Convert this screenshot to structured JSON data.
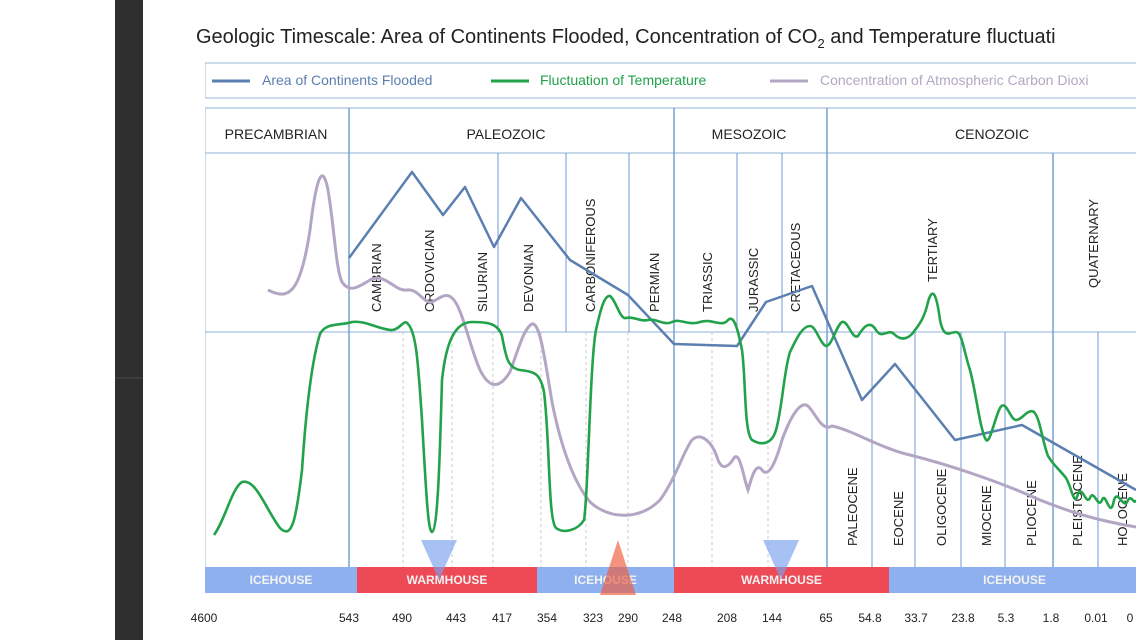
{
  "page": {
    "background": "#ffffff"
  },
  "chart_data": {
    "type": "line",
    "title": "Geologic Timescale: Area of Continents Flooded, Concentration of CO2 and Temperature fluctuati",
    "title_parts": {
      "before_sub": "Geologic Timescale: Area of Continents Flooded, Concentration of CO",
      "subscript": "2",
      "after_sub": " and Temperature fluctuati"
    },
    "xlabel": "",
    "ylabel": "",
    "x_axis": {
      "direction": "reversed",
      "scale": "non-linear (era boundaries)",
      "tick_labels": [
        "4600",
        "543",
        "490",
        "443",
        "417",
        "354",
        "323",
        "290",
        "248",
        "208",
        "144",
        "65",
        "54.8",
        "33.7",
        "23.8",
        "5.3",
        "1.8",
        "0.01",
        "0"
      ]
    },
    "legend": {
      "placement": "top",
      "entries": [
        {
          "label": "Area of Continents Flooded",
          "color": "#5b7fb0"
        },
        {
          "label": "Fluctuation of Temperature",
          "color": "#22a24a"
        },
        {
          "label": "Concentration of Atmospheric Carbon Dioxi",
          "color": "#b3a6c4"
        }
      ]
    },
    "eras": [
      {
        "name": "PRECAMBRIAN",
        "from": "4600",
        "to": "543"
      },
      {
        "name": "PALEOZOIC",
        "from": "543",
        "to": "248"
      },
      {
        "name": "MESOZOIC",
        "from": "248",
        "to": "65"
      },
      {
        "name": "CENOZOIC",
        "from": "65",
        "to": "0"
      }
    ],
    "periods": [
      "CAMBRIAN",
      "ORDOVICIAN",
      "SILURIAN",
      "DEVONIAN",
      "CARBONIFEROUS",
      "PERMIAN",
      "TRIASSIC",
      "JURASSIC",
      "CRETACEOUS",
      "TERTIARY",
      "QUATERNARY"
    ],
    "epochs": [
      "PALEOCENE",
      "EOCENE",
      "OLIGOCENE",
      "MIOCENE",
      "PLIOCENE",
      "PLEISTOCENE",
      "HOLOCENE"
    ],
    "climate_bands": [
      {
        "label": "ICEHOUSE",
        "type": "icehouse"
      },
      {
        "label": "WARMHOUSE",
        "type": "warmhouse"
      },
      {
        "label": "ICEHOUSE",
        "type": "icehouse"
      },
      {
        "label": "WARMHOUSE",
        "type": "warmhouse"
      },
      {
        "label": "ICEHOUSE",
        "type": "icehouse"
      }
    ],
    "colors": {
      "flooded": "#5b7fb0",
      "temperature": "#22a24a",
      "co2": "#b3a6c4",
      "icehouse": "#8fb0ee",
      "warmhouse": "#ee4a55",
      "gridline": "#6e9ad0"
    },
    "series": [
      {
        "name": "Area of Continents Flooded",
        "x_ticks": [
          "543",
          "490",
          "443",
          "417",
          "354",
          "323",
          "248",
          "144",
          "65",
          "54.8",
          "33.7",
          "23.8",
          "5.3",
          "0"
        ],
        "shape": "rising from 543 to peaks near 490 and 443, declining through Carboniferous/Permian, low at 248, rising to a peak in Cretaceous, then falling through Cenozoic to a minimum at 0"
      },
      {
        "name": "Fluctuation of Temperature",
        "shape": "cool oscillations in Precambrian, warm plateau in Cambrian, sharp cold dip near 443, warm Silurian/Devonian, cold Carboniferous–Permian dip, warm Mesozoic with a Jurassic dip, oscillating Cenozoic decline"
      },
      {
        "name": "Concentration of Atmospheric Carbon Dioxi",
        "shape": "high Precambrian peak, declining through Paleozoic to a Permian minimum, moderate Mesozoic rise, gradual Cenozoic decline"
      }
    ]
  }
}
